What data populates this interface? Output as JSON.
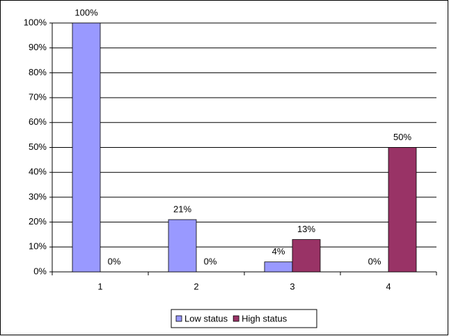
{
  "chart_data": {
    "type": "bar",
    "categories": [
      "1",
      "2",
      "3",
      "4"
    ],
    "series": [
      {
        "name": "Low status",
        "color": "#9999ff",
        "values": [
          100,
          21,
          4,
          0
        ],
        "value_labels": [
          "100%",
          "21%",
          "4%",
          "0%"
        ]
      },
      {
        "name": "High status",
        "color": "#993366",
        "values": [
          0,
          0,
          13,
          50
        ],
        "value_labels": [
          "0%",
          "0%",
          "13%",
          "50%"
        ]
      }
    ],
    "ylim": [
      0,
      100
    ],
    "yticks": [
      {
        "value": 0,
        "label": "0%"
      },
      {
        "value": 10,
        "label": "10%"
      },
      {
        "value": 20,
        "label": "20%"
      },
      {
        "value": 30,
        "label": "30%"
      },
      {
        "value": 40,
        "label": "40%"
      },
      {
        "value": 50,
        "label": "50%"
      },
      {
        "value": 60,
        "label": "60%"
      },
      {
        "value": 70,
        "label": "70%"
      },
      {
        "value": 80,
        "label": "80%"
      },
      {
        "value": 90,
        "label": "90%"
      },
      {
        "value": 100,
        "label": "100%"
      }
    ],
    "grid": true,
    "legend": "bottom"
  }
}
